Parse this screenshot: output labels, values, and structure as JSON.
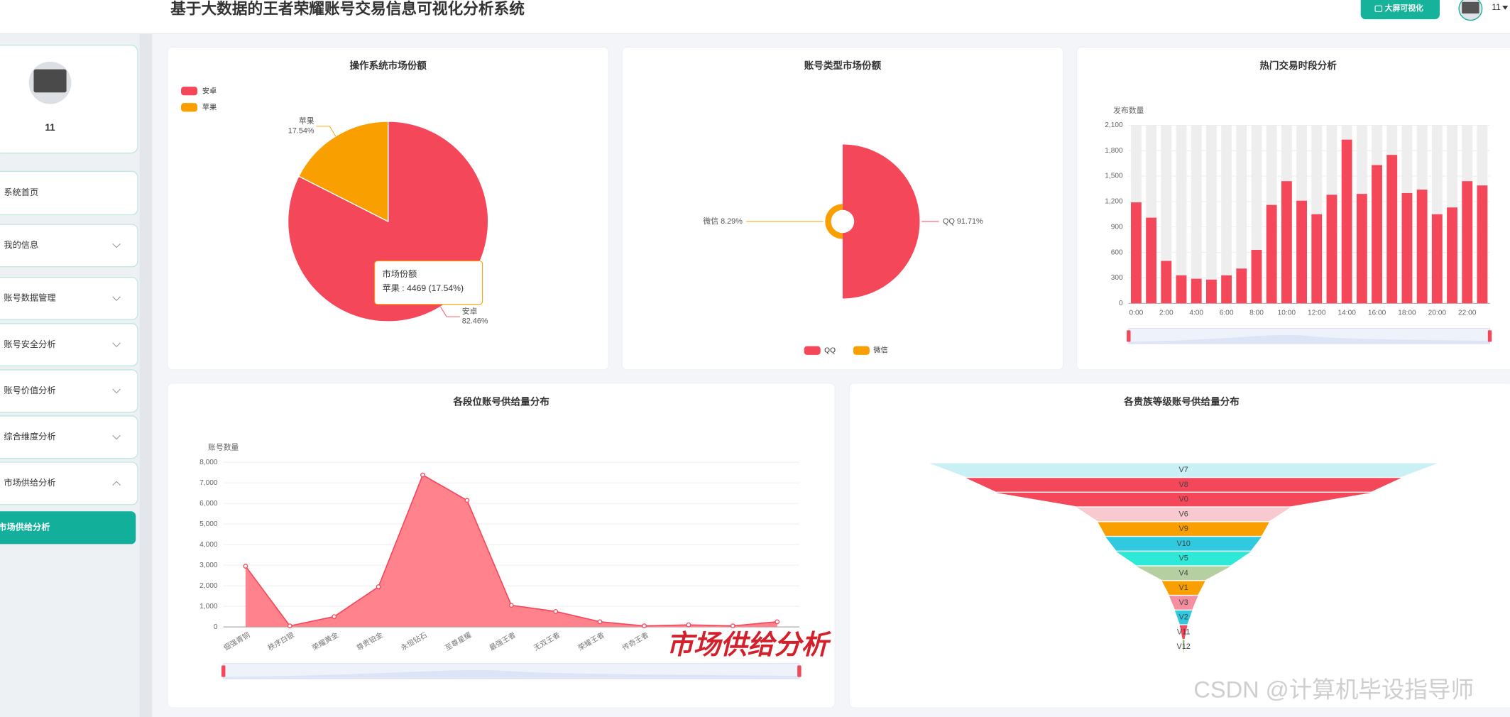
{
  "header": {
    "title": "基于大数据的王者荣耀账号交易信息可视化分析系统",
    "button": "大屏可视化",
    "user": "11"
  },
  "sidebar": {
    "user": "11",
    "menu": [
      "系统首页",
      "我的信息",
      "账号数据管理",
      "账号安全分析",
      "账号价值分析",
      "综合维度分析",
      "市场供给分析"
    ],
    "active": "市场供给分析"
  },
  "chart_data": [
    {
      "type": "pie",
      "title": "操作系统市场份额",
      "categories": [
        "安卓",
        "苹果"
      ],
      "values": [
        82.46,
        17.54
      ],
      "value_labels": [
        "82.46%",
        "17.54%"
      ],
      "colors": [
        "#f5475a",
        "#f9a000"
      ],
      "legend": "top-left",
      "tooltip": {
        "title": "市场份额",
        "text": "苹果 : 4469 (17.54%)"
      }
    },
    {
      "type": "rose",
      "title": "账号类型市场份额",
      "categories": [
        "QQ",
        "微信"
      ],
      "values": [
        91.71,
        8.29
      ],
      "value_labels": [
        "91.71%",
        "8.29%"
      ],
      "colors": [
        "#f5475a",
        "#f9a000"
      ],
      "legend": "bottom"
    },
    {
      "type": "bar",
      "title": "热门交易时段分析",
      "y_label": "发布数量",
      "categories": [
        "0:00",
        null,
        "2:00",
        null,
        "4:00",
        null,
        "6:00",
        null,
        "8:00",
        null,
        "10:00",
        null,
        "12:00",
        null,
        "14:00",
        null,
        "16:00",
        null,
        "18:00",
        null,
        "20:00",
        null,
        "22:00",
        null
      ],
      "values": [
        1190,
        1010,
        500,
        330,
        290,
        280,
        330,
        410,
        630,
        1160,
        1440,
        1210,
        1050,
        1280,
        1930,
        1290,
        1630,
        1750,
        1300,
        1340,
        1050,
        1130,
        1440,
        1390
      ],
      "color": "#f5475a",
      "ylim": [
        0,
        2100
      ],
      "yticks": [
        0,
        300,
        600,
        900,
        {
          "value": 1200,
          "label": "1,200"
        },
        {
          "value": 1500,
          "label": "1,500"
        },
        {
          "value": 1800,
          "label": "1,800"
        },
        {
          "value": 2100,
          "label": "2,100"
        }
      ],
      "grid": true
    },
    {
      "type": "line",
      "title": "各段位账号供给量分布",
      "y_label": "账号数量",
      "area": true,
      "categories": [
        "倔强青铜",
        "秩序白银",
        "荣耀黄金",
        "尊贵铂金",
        "永恒钻石",
        "至尊星耀",
        "最强王者",
        "无双王者",
        "荣耀王者",
        "传奇王者",
        null,
        null,
        null
      ],
      "values": [
        2950,
        50,
        500,
        1950,
        7380,
        6150,
        1050,
        750,
        250,
        50,
        100,
        50,
        250
      ],
      "color": "#f5475a",
      "area_color": "#ff7b86",
      "ylim": [
        0,
        8000
      ],
      "yticks": [
        0,
        {
          "value": 1000,
          "label": "1,000"
        },
        {
          "value": 2000,
          "label": "2,000"
        },
        {
          "value": 3000,
          "label": "3,000"
        },
        {
          "value": 4000,
          "label": "4,000"
        },
        {
          "value": 5000,
          "label": "5,000"
        },
        {
          "value": 6000,
          "label": "6,000"
        },
        {
          "value": 7000,
          "label": "7,000"
        },
        {
          "value": 8000,
          "label": "8,000"
        }
      ],
      "grid": true
    },
    {
      "type": "funnel",
      "title": "各贵族等级账号供给量分布",
      "categories": [
        "V7",
        "V8",
        "V0",
        "V6",
        "V9",
        "V10",
        "V5",
        "V4",
        "V1",
        "V3",
        "V2",
        "V11",
        "V12"
      ],
      "values": [
        528,
        452,
        390,
        222,
        178,
        162,
        140,
        98,
        45,
        30,
        18,
        8,
        2
      ],
      "colors": [
        "#c9f0f5",
        "#f5475a",
        "#f5475a",
        "#f8c9cf",
        "#f9a000",
        "#30c9e0",
        "#2ee8d8",
        "#b5cfa0",
        "#f9a000",
        "#f58fa0",
        "#30c9e0",
        "#f5475a",
        "#9bb36b"
      ]
    }
  ],
  "watermarks": [
    "市场供给分析",
    "CSDN @计算机毕设指导师"
  ]
}
